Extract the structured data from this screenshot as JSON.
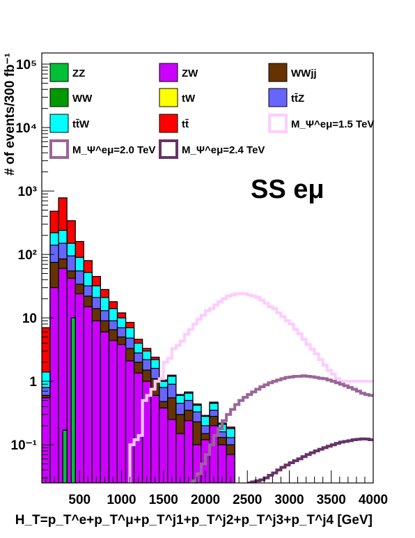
{
  "chart_data": {
    "type": "bar",
    "stacked": true,
    "ylabel": "# of events/300 fb⁻¹",
    "xlabel": "H_T=p_T^e+p_T^μ+p_T^j1+p_T^j2+p_T^j3+p_T^j4 [GeV]",
    "annotation": "SS eμ",
    "xlim": [
      50,
      4000
    ],
    "ylim": [
      0.025,
      150000
    ],
    "y_scale": "log",
    "bin_width": 50,
    "x_ticks": [
      500,
      1000,
      1500,
      2000,
      2500,
      3000,
      3500,
      4000
    ],
    "x_tick_labels": [
      "500",
      "1000",
      "1500",
      "2000",
      "2500",
      "3000",
      "3500",
      "4000"
    ],
    "y_ticks": [
      0.1,
      1,
      10,
      100,
      1000,
      10000,
      100000
    ],
    "y_tick_labels": [
      "10⁻¹",
      "1",
      "10",
      "10²",
      "10³",
      "10⁴",
      "10⁵"
    ],
    "bin_edges_start": [
      50,
      100,
      150,
      200,
      250,
      300,
      350,
      400,
      450,
      500,
      550,
      600,
      650,
      700,
      750,
      800,
      850,
      900,
      950,
      1000,
      1050,
      1100,
      1150,
      1200,
      1250,
      1300,
      1350,
      1400,
      1450,
      1500,
      1550,
      1600,
      1650,
      1700,
      1750,
      1800,
      1850,
      1900,
      1950,
      2000,
      2050,
      2100,
      2150,
      2200,
      2250,
      2300,
      2350,
      2400,
      2450,
      2500,
      2550,
      2600,
      2650,
      2700,
      2750,
      2800,
      2850,
      2900,
      2950,
      3000,
      3050,
      3100,
      3150,
      3200,
      3250,
      3300,
      3350,
      3400,
      3450,
      3500,
      3550,
      3600,
      3650,
      3700,
      3750,
      3800,
      3850,
      3900,
      3950
    ],
    "stack_series": [
      {
        "name": "ZW",
        "color": "#cc00ff",
        "values": [
          0.5,
          0,
          0,
          0,
          15,
          0,
          0,
          0,
          22,
          55,
          58,
          0,
          33,
          0,
          18,
          0,
          15,
          0,
          7,
          0,
          5,
          0,
          4.2,
          0,
          1.8,
          0,
          1.2,
          0,
          0.75,
          0,
          0.65,
          0,
          0.38,
          0,
          0.13,
          0,
          0.16,
          0,
          0.24,
          0,
          0.1,
          0,
          0.12,
          0,
          0.2,
          0,
          0.1,
          0,
          0.07,
          0,
          0,
          0,
          0,
          0,
          0,
          0,
          0,
          0,
          0,
          0,
          0,
          0,
          0,
          0,
          0,
          0,
          0,
          0,
          0,
          0,
          0,
          0,
          0,
          0,
          0,
          0,
          0,
          0,
          0
        ]
      },
      {
        "name": "ZZ",
        "color": "#00c037",
        "values": [
          0,
          0,
          0,
          0,
          0,
          0,
          0,
          0,
          0,
          0,
          0,
          0,
          0,
          0,
          0,
          0,
          0,
          0,
          0,
          0,
          0,
          0,
          0,
          0,
          0,
          0,
          0,
          0,
          0,
          0,
          0,
          0,
          0,
          0,
          0,
          0,
          0,
          0,
          0,
          0,
          0,
          0,
          0,
          0,
          0,
          0,
          0,
          0,
          0,
          0,
          0,
          0,
          0,
          0,
          0,
          0,
          0,
          0,
          0,
          0,
          0,
          0,
          0,
          0,
          0,
          0,
          0,
          0,
          0,
          0,
          0,
          0,
          0,
          0,
          0,
          0,
          0,
          0,
          0
        ]
      },
      {
        "name": "WWjj",
        "color": "#663300",
        "values": []
      },
      {
        "name": "WW",
        "color": "#009900",
        "values": []
      },
      {
        "name": "tW",
        "color": "#ffff00",
        "values": []
      },
      {
        "name": "tt̄Z",
        "color": "#6666ff",
        "values": []
      },
      {
        "name": "tt̄W",
        "color": "#00ffff",
        "values": []
      },
      {
        "name": "tt̄",
        "color": "#ff0000",
        "values": []
      }
    ],
    "stack_totals": {
      "x_start": [
        50,
        150,
        250,
        350,
        450,
        550,
        650,
        750,
        850,
        950,
        1050,
        1150,
        1250,
        1350,
        1450,
        1550,
        1650,
        1750,
        1850,
        1950,
        2050,
        2150,
        2250,
        2350,
        2450,
        2550,
        2650,
        2750,
        2850,
        2950,
        3050
      ],
      "ZW": [
        0.55,
        30,
        60,
        42,
        24,
        15,
        9,
        6,
        4.4,
        3.8,
        2.1,
        1.35,
        1.0,
        0.6,
        0.38,
        0.25,
        0.15,
        0.24,
        0.1,
        0.12,
        0.2,
        0.1,
        0.07,
        0,
        0,
        0,
        0,
        0,
        0,
        0,
        0
      ],
      "WWjj": [
        0.6,
        75,
        85,
        55,
        34,
        22,
        14,
        9,
        6.5,
        5,
        3.3,
        2,
        1.5,
        1.1,
        0.48,
        0.55,
        0.3,
        0.35,
        0.23,
        0.15,
        0.28,
        0.13,
        0.1,
        0,
        0,
        0,
        0,
        0,
        0,
        0,
        0
      ],
      "ttZ": [
        0.8,
        140,
        150,
        95,
        55,
        32,
        21,
        13,
        9,
        7,
        4.8,
        2.8,
        2.2,
        1.6,
        0.8,
        0.9,
        0.45,
        0.5,
        0.33,
        0.2,
        0.35,
        0.16,
        0.13,
        0,
        0,
        0,
        0,
        0,
        0,
        0,
        0
      ],
      "ttW": [
        1.4,
        220,
        240,
        150,
        90,
        52,
        32,
        21,
        14,
        10,
        7,
        4,
        3,
        2.2,
        1.0,
        1.2,
        0.6,
        0.65,
        0.42,
        0.28,
        0.45,
        0.21,
        0.18,
        0,
        0,
        0,
        0,
        0,
        0,
        0,
        0
      ],
      "tt": [
        7,
        480,
        780,
        340,
        160,
        80,
        45,
        28,
        18,
        12,
        8.5,
        4.6,
        3.3,
        2.4,
        1.05,
        1.25,
        0.62,
        0.68,
        0.44,
        0.29,
        0.47,
        0.22,
        0.19,
        0,
        0,
        0,
        0,
        0,
        0,
        0,
        0
      ]
    },
    "zz_bins": [
      {
        "x0": 300,
        "x1": 350,
        "value": 0.17
      },
      {
        "x0": 400,
        "x1": 450,
        "value": 10
      }
    ],
    "signal_series": [
      {
        "name": "M_Ψ^eμ=1.5 TeV",
        "color": "#ffccff",
        "x_start": [
          1100,
          1150,
          1200,
          1250,
          1300,
          1350,
          1400,
          1450,
          1500,
          1550,
          1600,
          1650,
          1700,
          1750,
          1800,
          1850,
          1900,
          1950,
          2000,
          2050,
          2100,
          2150,
          2200,
          2250,
          2300,
          2350,
          2400,
          2450,
          2500,
          2550,
          2600,
          2650,
          2700,
          2750,
          2800,
          2850,
          2900,
          2950,
          3000,
          3050,
          3100,
          3150,
          3200,
          3250,
          3300,
          3350,
          3400,
          3450,
          3500,
          3550,
          3600,
          3650,
          3700,
          3750,
          3800,
          3850,
          3900,
          3950
        ],
        "values": [
          0.1,
          0.12,
          0.14,
          0.5,
          0.6,
          0.75,
          1.0,
          1.1,
          2.0,
          2.3,
          3.3,
          3.7,
          4.3,
          5.5,
          6.6,
          8,
          9.5,
          11,
          13,
          14,
          16,
          18,
          20,
          22,
          23,
          24,
          24,
          24,
          23,
          22,
          21,
          19,
          17,
          15,
          14,
          12,
          10.5,
          9,
          8,
          6.6,
          5.6,
          4.6,
          3.8,
          3.2,
          2.7,
          2.2,
          1.8,
          1.5,
          1.3,
          1.1,
          1.0,
          1.0,
          1.0,
          1.0,
          1.0,
          1.0,
          1.0,
          1.0
        ]
      },
      {
        "name": "M_Ψ^eμ=2.0 TeV",
        "color": "#996699",
        "x_start": [
          1800,
          1850,
          1900,
          1950,
          2000,
          2050,
          2100,
          2150,
          2200,
          2250,
          2300,
          2350,
          2400,
          2450,
          2500,
          2550,
          2600,
          2650,
          2700,
          2750,
          2800,
          2850,
          2900,
          2950,
          3000,
          3050,
          3100,
          3150,
          3200,
          3250,
          3300,
          3350,
          3400,
          3450,
          3500,
          3550,
          3600,
          3650,
          3700,
          3750,
          3800,
          3850,
          3900,
          3950
        ],
        "values": [
          0.025,
          0.027,
          0.035,
          0.05,
          0.07,
          0.1,
          0.14,
          0.18,
          0.24,
          0.3,
          0.36,
          0.43,
          0.5,
          0.56,
          0.62,
          0.68,
          0.75,
          0.82,
          0.88,
          0.95,
          1.0,
          1.05,
          1.1,
          1.15,
          1.17,
          1.2,
          1.2,
          1.22,
          1.2,
          1.18,
          1.15,
          1.12,
          1.1,
          1.05,
          1.0,
          0.95,
          0.9,
          0.85,
          0.8,
          0.75,
          0.7,
          0.65,
          0.62,
          0.6
        ]
      },
      {
        "name": "M_Ψ^eμ=2.4 TeV",
        "color": "#663366",
        "x_start": [
          2500,
          2550,
          2600,
          2650,
          2700,
          2750,
          2800,
          2850,
          2900,
          2950,
          3000,
          3050,
          3100,
          3150,
          3200,
          3250,
          3300,
          3350,
          3400,
          3450,
          3500,
          3550,
          3600,
          3650,
          3700,
          3750,
          3800,
          3850,
          3900,
          3950
        ],
        "values": [
          0.025,
          0.026,
          0.027,
          0.028,
          0.03,
          0.033,
          0.036,
          0.04,
          0.044,
          0.048,
          0.052,
          0.056,
          0.06,
          0.065,
          0.07,
          0.075,
          0.08,
          0.085,
          0.09,
          0.095,
          0.1,
          0.105,
          0.11,
          0.113,
          0.116,
          0.12,
          0.122,
          0.124,
          0.123,
          0.12
        ]
      }
    ],
    "legend": [
      {
        "label": "ZZ",
        "color": "#00c037",
        "style": "fill"
      },
      {
        "label": "ZW",
        "color": "#cc00ff",
        "style": "fill"
      },
      {
        "label": "WWjj",
        "color": "#663300",
        "style": "fill"
      },
      {
        "label": "WW",
        "color": "#009900",
        "style": "fill"
      },
      {
        "label": "tW",
        "color": "#ffff00",
        "style": "fill"
      },
      {
        "label": "tt̄Z",
        "color": "#6666ff",
        "style": "fill"
      },
      {
        "label": "tt̄W",
        "color": "#00ffff",
        "style": "fill"
      },
      {
        "label": "tt̄",
        "color": "#ff0000",
        "style": "fill"
      },
      {
        "label": "M_Ψ^eμ=1.5 TeV",
        "color": "#ffccff",
        "style": "line"
      },
      {
        "label": "M_Ψ^eμ=2.0 TeV",
        "color": "#996699",
        "style": "line"
      },
      {
        "label": "M_Ψ^eμ=2.4 TeV",
        "color": "#663366",
        "style": "line"
      }
    ],
    "legend_placement": "top"
  }
}
